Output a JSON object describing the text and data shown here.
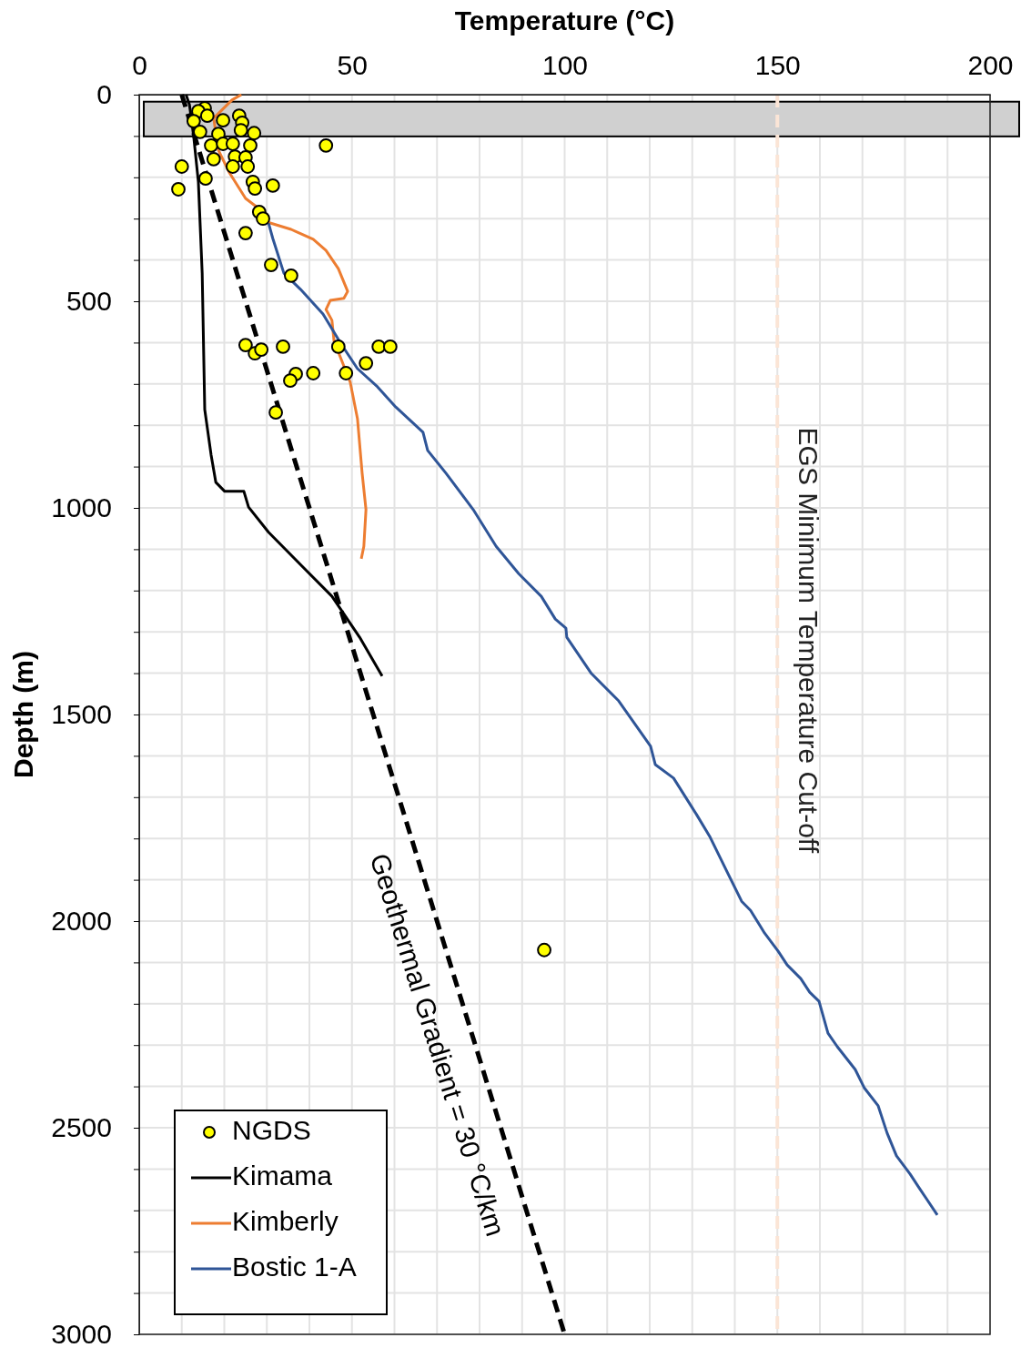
{
  "chart_data": {
    "type": "line",
    "xlabel": "Temperature (°C)",
    "ylabel": "Depth (m)",
    "xlim": [
      0,
      200
    ],
    "ylim": [
      3000,
      0
    ],
    "xticks": [
      0,
      {
        "value": 10,
        "label": null
      },
      {
        "value": 20,
        "label": null
      },
      {
        "value": 30,
        "label": null
      },
      {
        "value": 40,
        "label": null
      },
      50,
      {
        "value": 60,
        "label": null
      },
      {
        "value": 70,
        "label": null
      },
      {
        "value": 80,
        "label": null
      },
      {
        "value": 90,
        "label": null
      },
      100,
      {
        "value": 110,
        "label": null
      },
      {
        "value": 120,
        "label": null
      },
      {
        "value": 130,
        "label": null
      },
      {
        "value": 140,
        "label": null
      },
      150,
      {
        "value": 160,
        "label": null
      },
      {
        "value": 170,
        "label": null
      },
      {
        "value": 180,
        "label": null
      },
      {
        "value": 190,
        "label": null
      },
      200
    ],
    "yticks": [
      0,
      {
        "value": 100,
        "label": null
      },
      {
        "value": 200,
        "label": null
      },
      {
        "value": 300,
        "label": null
      },
      {
        "value": 400,
        "label": null
      },
      500,
      {
        "value": 600,
        "label": null
      },
      {
        "value": 700,
        "label": null
      },
      {
        "value": 800,
        "label": null
      },
      {
        "value": 900,
        "label": null
      },
      1000,
      {
        "value": 1100,
        "label": null
      },
      {
        "value": 1200,
        "label": null
      },
      {
        "value": 1300,
        "label": null
      },
      {
        "value": 1400,
        "label": null
      },
      1500,
      {
        "value": 1600,
        "label": null
      },
      {
        "value": 1700,
        "label": null
      },
      {
        "value": 1800,
        "label": null
      },
      {
        "value": 1900,
        "label": null
      },
      2000,
      {
        "value": 2100,
        "label": null
      },
      {
        "value": 2200,
        "label": null
      },
      {
        "value": 2300,
        "label": null
      },
      {
        "value": 2400,
        "label": null
      },
      2500,
      {
        "value": 2600,
        "label": null
      },
      {
        "value": 2700,
        "label": null
      },
      {
        "value": 2800,
        "label": null
      },
      {
        "value": 2900,
        "label": null
      },
      3000
    ],
    "grid": true,
    "legend": "bottom left",
    "bands": [
      {
        "axis": "y",
        "from": 17,
        "to": 101,
        "color": "#d0d0d0"
      }
    ],
    "ref_lines": [
      {
        "axis": "x",
        "value": 150,
        "label": "EGS Minimum Temperature Cut-off",
        "color": "#fbe5d6",
        "line_style": "dashed"
      }
    ],
    "annotations": [
      "Geothermal Gradient = 30 °C/km"
    ],
    "series": [
      {
        "name": "NGDS",
        "type": "scatter",
        "marker": "circle",
        "color": "#ffff00",
        "x": [
          15.4,
          13.9,
          12.8,
          16.0,
          19.7,
          23.5,
          24.2,
          27,
          23.9,
          18.6,
          14.3,
          43.9,
          16.9,
          19.7,
          22,
          26.1,
          17.5,
          22.5,
          25,
          22,
          25.5,
          10,
          9.2,
          15.6,
          26.7,
          27.2,
          31.4,
          28.2,
          29.1,
          25,
          31,
          35.7,
          25,
          27.2,
          28.7,
          33.8,
          46.8,
          56.3,
          59,
          53.3,
          48.6,
          40.9,
          36.8,
          35.5,
          32.1,
          95.2
        ],
        "values": [
          33,
          40,
          64,
          51,
          62,
          51,
          68,
          93,
          86,
          95,
          90,
          123,
          123,
          119,
          119,
          123,
          156,
          150,
          152,
          174,
          174,
          174,
          229,
          203,
          211,
          227,
          220,
          284,
          300,
          335,
          412,
          438,
          606,
          626,
          617,
          610,
          610,
          610,
          610,
          650,
          674,
          674,
          676,
          692,
          769,
          2070
        ]
      },
      {
        "name": "Kimama",
        "color": "#000000",
        "x": [
          11,
          11.8,
          12.8,
          13.9,
          14.8,
          15.4,
          16.9,
          18,
          20.1,
          24.6,
          25.7,
          30.4,
          37.9,
          45.3,
          51.8,
          57.1
        ],
        "values": [
          0,
          24,
          101,
          211,
          432,
          762,
          872,
          938,
          960,
          960,
          998,
          1059,
          1137,
          1214,
          1313,
          1407
        ]
      },
      {
        "name": "Kimberly",
        "color": "#ed7d31",
        "x": [
          24,
          21.8,
          17.5,
          18.6,
          21.2,
          25,
          27.8,
          29.3,
          30.6,
          35.7,
          40.9,
          43.9,
          46.8,
          49,
          48.1,
          44.9,
          43.9,
          45.3,
          45.8,
          47.5,
          49.6,
          51.3,
          52.4,
          53.3,
          52.8,
          52.2
        ],
        "values": [
          0,
          13,
          57,
          134,
          189,
          251,
          273,
          295,
          310,
          326,
          350,
          377,
          421,
          476,
          493,
          498,
          520,
          546,
          597,
          641,
          696,
          784,
          916,
          1004,
          1093,
          1123
        ]
      },
      {
        "name": "Bostic 1-A",
        "color": "#2f5597",
        "x": [
          30.4,
          31.4,
          34,
          37.9,
          43.2,
          47.5,
          51.3,
          56,
          60.3,
          66.7,
          67.8,
          72.1,
          78.5,
          83.9,
          89.2,
          94.5,
          97.8,
          100.3,
          100.5,
          106.3,
          112.7,
          120.2,
          121.3,
          125.6,
          131,
          134.2,
          138.4,
          141.6,
          143.7,
          147,
          150.2,
          152.3,
          155.5,
          157.6,
          159.8,
          161.9,
          164.1,
          168.3,
          170.4,
          173.7,
          175.8,
          178,
          181.2,
          183.3,
          187.6
        ],
        "values": [
          311,
          348,
          432,
          471,
          531,
          604,
          663,
          707,
          756,
          817,
          861,
          916,
          1004,
          1093,
          1159,
          1214,
          1269,
          1291,
          1313,
          1401,
          1467,
          1577,
          1621,
          1654,
          1742,
          1797,
          1885,
          1952,
          1974,
          2029,
          2073,
          2106,
          2139,
          2172,
          2194,
          2271,
          2304,
          2359,
          2403,
          2447,
          2513,
          2568,
          2612,
          2645,
          2711
        ]
      },
      {
        "color": "#000000",
        "line_style": "dashed",
        "x": [
          10,
          100
        ],
        "values": [
          0,
          3000
        ]
      }
    ]
  }
}
